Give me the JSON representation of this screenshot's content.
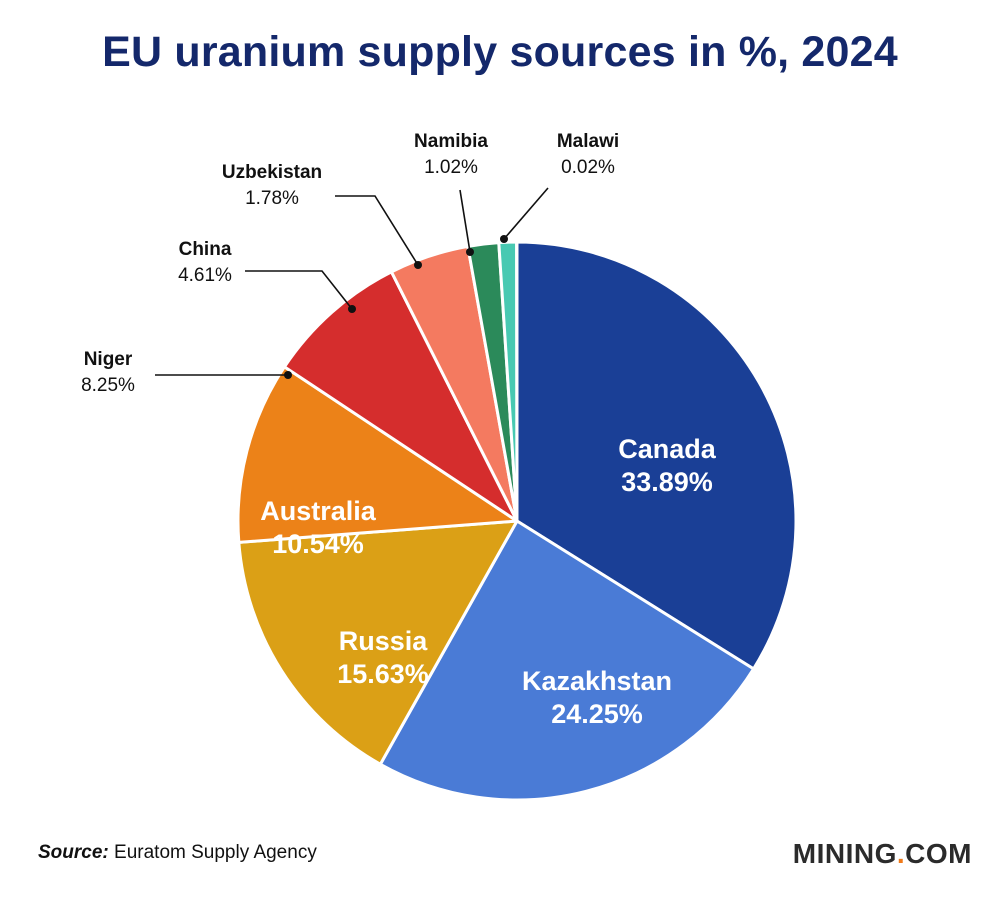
{
  "title": "EU uranium supply sources in %, 2024",
  "source": {
    "label": "Source:",
    "text": "Euratom Supply Agency"
  },
  "brand": {
    "main": "MINING",
    "dot": ".",
    "suffix": "COM"
  },
  "chart_data": {
    "type": "pie",
    "title": "EU uranium supply sources in %, 2024",
    "slices": [
      {
        "label": "Canada",
        "value": 33.89,
        "text": "33.89%",
        "color": "#1a3f96",
        "placement": "inside"
      },
      {
        "label": "Kazakhstan",
        "value": 24.25,
        "text": "24.25%",
        "color": "#4a7bd6",
        "placement": "inside"
      },
      {
        "label": "Russia",
        "value": 15.63,
        "text": "15.63%",
        "color": "#dba016",
        "placement": "inside"
      },
      {
        "label": "Australia",
        "value": 10.54,
        "text": "10.54%",
        "color": "#ec8218",
        "placement": "inside"
      },
      {
        "label": "Niger",
        "value": 8.25,
        "text": "8.25%",
        "color": "#d52d2d",
        "placement": "outside"
      },
      {
        "label": "China",
        "value": 4.61,
        "text": "4.61%",
        "color": "#f47a60",
        "placement": "outside"
      },
      {
        "label": "Uzbekistan",
        "value": 1.78,
        "text": "1.78%",
        "color": "#2b8a5a",
        "placement": "outside"
      },
      {
        "label": "Namibia",
        "value": 1.02,
        "text": "1.02%",
        "color": "#48c9b2",
        "placement": "outside"
      },
      {
        "label": "Malawi",
        "value": 0.02,
        "text": "0.02%",
        "color": "#3fd0d8",
        "placement": "outside"
      }
    ],
    "start": "12 o'clock",
    "direction": "clockwise",
    "legend": "none"
  }
}
